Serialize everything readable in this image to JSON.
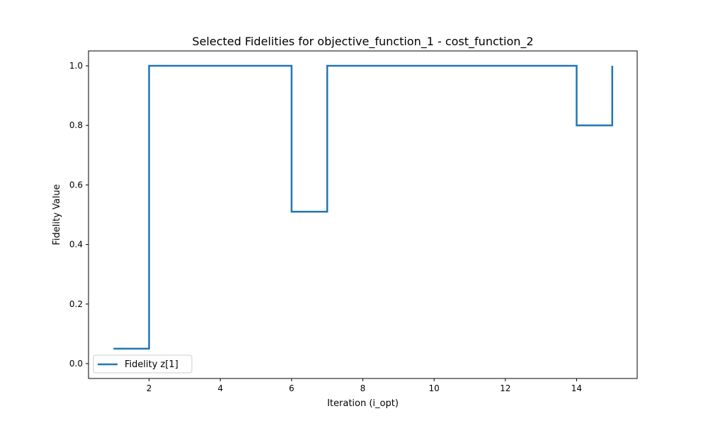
{
  "chart_data": {
    "type": "line",
    "step": "post",
    "title": "Selected Fidelities for objective_function_1 - cost_function_2",
    "xlabel": "Iteration (i_opt)",
    "ylabel": "Fidelity Value",
    "xlim": [
      0.3,
      15.7
    ],
    "ylim": [
      -0.05,
      1.05
    ],
    "xticks": [
      2,
      4,
      6,
      8,
      10,
      12,
      14
    ],
    "yticks": [
      0.0,
      0.2,
      0.4,
      0.6,
      0.8,
      1.0
    ],
    "xtick_labels": [
      "2",
      "4",
      "6",
      "8",
      "10",
      "12",
      "14"
    ],
    "ytick_labels": [
      "0.0",
      "0.2",
      "0.4",
      "0.6",
      "0.8",
      "1.0"
    ],
    "grid": false,
    "legend_position": "lower-left",
    "series": [
      {
        "name": "Fidelity z[1]",
        "color": "#1f77b4",
        "x": [
          1,
          2,
          3,
          4,
          5,
          6,
          7,
          8,
          9,
          10,
          11,
          12,
          13,
          14,
          15
        ],
        "y": [
          0.05,
          1.0,
          1.0,
          1.0,
          1.0,
          0.51,
          1.0,
          1.0,
          1.0,
          1.0,
          1.0,
          1.0,
          1.0,
          0.8,
          1.0
        ]
      }
    ]
  }
}
